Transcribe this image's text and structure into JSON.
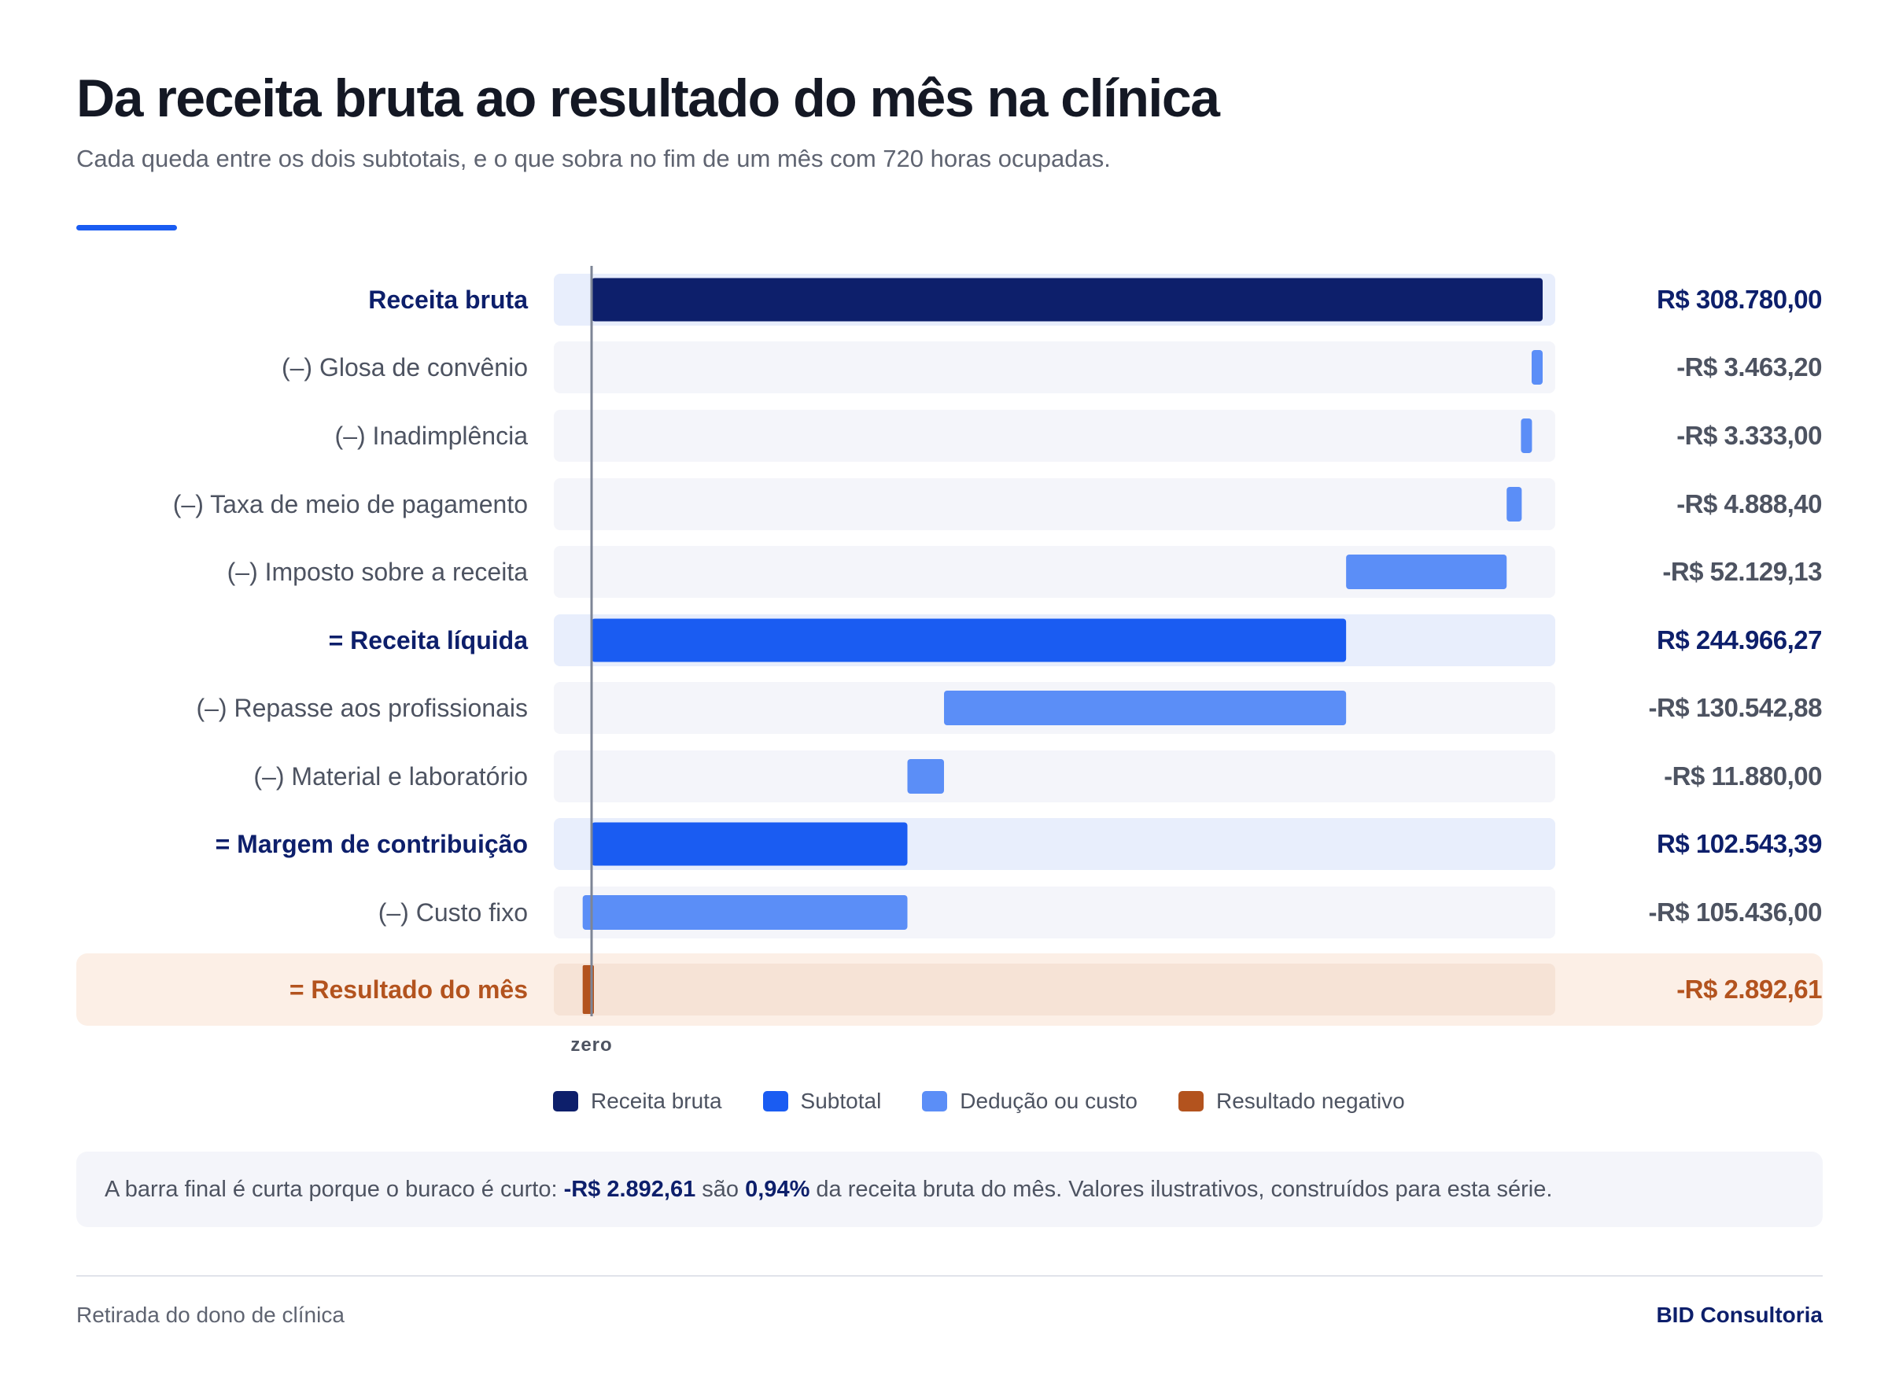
{
  "title": "Da receita bruta ao resultado do mês na clínica",
  "subtitle": "Cada queda entre os dois subtotais, e o que sobra no fim de um mês com 720 horas ocupadas.",
  "chart_data": {
    "type": "bar",
    "subtype": "waterfall",
    "orientation": "horizontal",
    "zero_label": "zero",
    "xlim": [
      -2892.61,
      308780.0
    ],
    "rows": [
      {
        "label": "Receita bruta",
        "value_label": "R$ 308.780,00",
        "kind": "gross",
        "start": 0,
        "end": 308780.0
      },
      {
        "label": "(–) Glosa de convênio",
        "value_label": "-R$ 3.463,20",
        "kind": "deduction",
        "start": 305316.8,
        "end": 308780.0
      },
      {
        "label": "(–) Inadimplência",
        "value_label": "-R$ 3.333,00",
        "kind": "deduction",
        "start": 301983.8,
        "end": 305316.8
      },
      {
        "label": "(–) Taxa de meio de pagamento",
        "value_label": "-R$ 4.888,40",
        "kind": "deduction",
        "start": 297095.4,
        "end": 301983.8
      },
      {
        "label": "(–) Imposto sobre a receita",
        "value_label": "-R$ 52.129,13",
        "kind": "deduction",
        "start": 244966.27,
        "end": 297095.4
      },
      {
        "label": "= Receita líquida",
        "value_label": "R$ 244.966,27",
        "kind": "subtotal",
        "start": 0,
        "end": 244966.27
      },
      {
        "label": "(–) Repasse aos profissionais",
        "value_label": "-R$ 130.542,88",
        "kind": "deduction",
        "start": 114423.39,
        "end": 244966.27
      },
      {
        "label": "(–) Material e laboratório",
        "value_label": "-R$ 11.880,00",
        "kind": "deduction",
        "start": 102543.39,
        "end": 114423.39
      },
      {
        "label": "= Margem de contribuição",
        "value_label": "R$ 102.543,39",
        "kind": "subtotal",
        "start": 0,
        "end": 102543.39
      },
      {
        "label": "(–) Custo fixo",
        "value_label": "-R$ 105.436,00",
        "kind": "deduction",
        "start": -2892.61,
        "end": 102543.39
      },
      {
        "label": "= Resultado do mês",
        "value_label": "-R$ 2.892,61",
        "kind": "negative",
        "start": -2892.61,
        "end": 0
      }
    ],
    "colors": {
      "gross": "#0d1f6b",
      "subtotal": "#1a5cf2",
      "deduction": "#5b8ef7",
      "negative": "#b3531e",
      "track": "#f4f5fa",
      "track_subtotal": "#e8eefc",
      "track_negative": "#f6e3d6",
      "row_negative": "#fcefe6",
      "zero_line": "#7d8596",
      "label_bold": "#0d1f6b",
      "label_regular": "#4d5361",
      "label_negative": "#b3531e"
    },
    "legend": [
      {
        "label": "Receita bruta",
        "color": "#0d1f6b"
      },
      {
        "label": "Subtotal",
        "color": "#1a5cf2"
      },
      {
        "label": "Dedução ou custo",
        "color": "#5b8ef7"
      },
      {
        "label": "Resultado negativo",
        "color": "#b3531e"
      }
    ]
  },
  "note": {
    "prefix": "A barra final é curta porque o buraco é curto: ",
    "amount": "-R$ 2.892,61",
    "middle": " são ",
    "percent": "0,94%",
    "suffix": " da receita bruta do mês. Valores ilustrativos, construídos para esta série."
  },
  "footer": {
    "left": "Retirada do dono de clínica",
    "right": "BID Consultoria"
  }
}
